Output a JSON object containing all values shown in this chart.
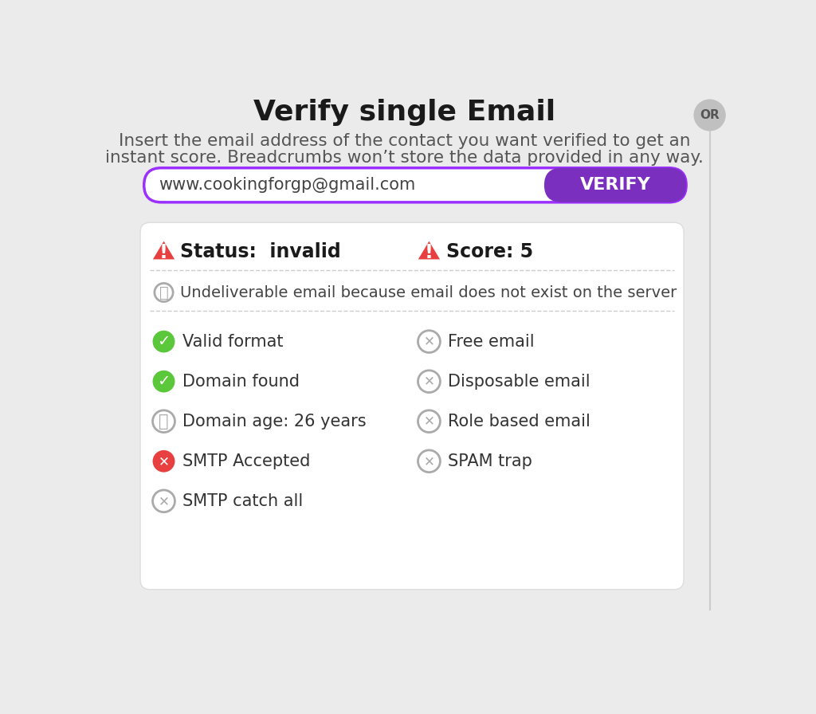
{
  "background_color": "#ebebeb",
  "title": "Verify single Email",
  "subtitle_line1": "Insert the email address of the contact you want verified to get an",
  "subtitle_line2": "instant score. Breadcrumbs won’t store the data provided in any way.",
  "email_placeholder": "www.cookingforgp@gmail.com",
  "verify_button_text": "VERIFY",
  "verify_button_color": "#7b2fbe",
  "input_border_color": "#9b30ff",
  "status_text": "Status:  invalid",
  "score_text": "Score: 5",
  "undeliverable_text": "Undeliverable email because email does not exist on the server",
  "or_text": "OR",
  "card_background": "#ffffff",
  "left_items": [
    {
      "icon": "green_check",
      "text": "Valid format"
    },
    {
      "icon": "green_check",
      "text": "Domain found"
    },
    {
      "icon": "gray_info",
      "text": "Domain age: 26 years"
    },
    {
      "icon": "red_x",
      "text": "SMTP Accepted"
    },
    {
      "icon": "gray_x",
      "text": "SMTP catch all"
    }
  ],
  "right_items": [
    {
      "icon": "gray_x",
      "text": "Free email"
    },
    {
      "icon": "gray_x",
      "text": "Disposable email"
    },
    {
      "icon": "gray_x",
      "text": "Role based email"
    },
    {
      "icon": "gray_x",
      "text": "SPAM trap"
    }
  ],
  "green_color": "#5bc73a",
  "red_color": "#e84040",
  "gray_color": "#aaaaaa",
  "dark_text": "#1a1a1a",
  "mid_text": "#555555",
  "item_text": "#333333"
}
